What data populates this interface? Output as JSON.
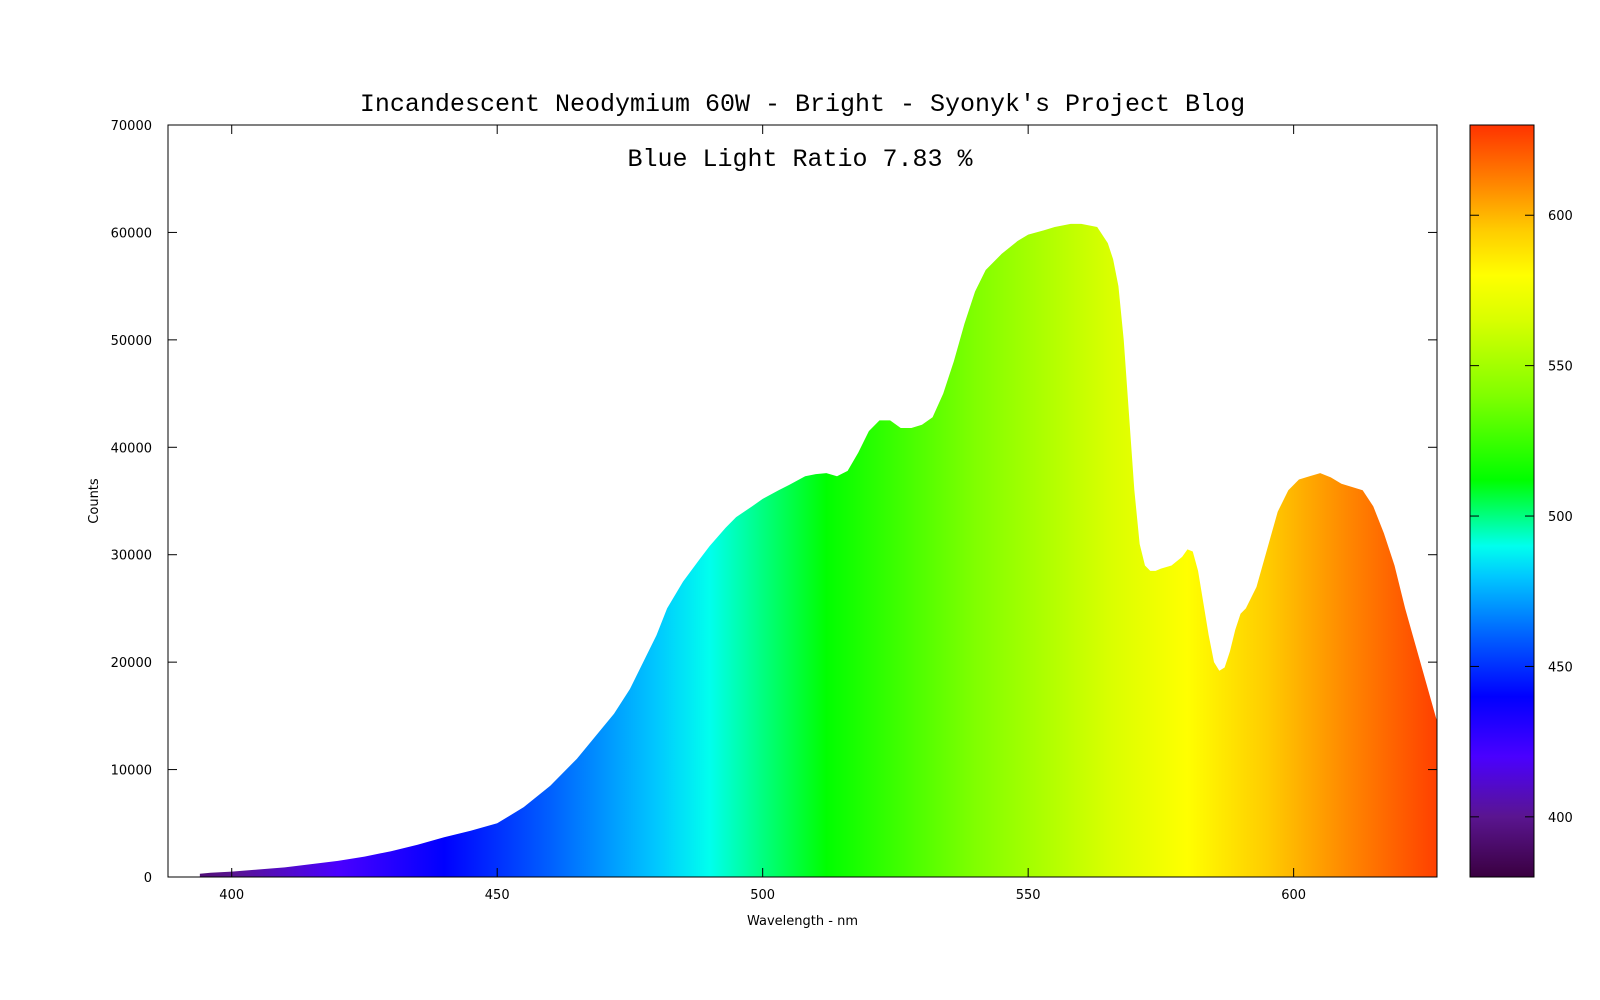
{
  "chart_data": {
    "type": "area",
    "title": "Incandescent Neodymium 60W - Bright - Syonyk's Project Blog",
    "annotation": "Blue Light Ratio 7.83 %",
    "xlabel": "Wavelength - nm",
    "ylabel": "Counts",
    "xlim": [
      388,
      627
    ],
    "ylim": [
      0,
      70000
    ],
    "x_ticks": [
      400,
      450,
      500,
      550,
      600
    ],
    "y_ticks": [
      0,
      10000,
      20000,
      30000,
      40000,
      50000,
      60000,
      70000
    ],
    "grid": false,
    "fill": "spectral gradient by wavelength",
    "colorbar": {
      "range": [
        380,
        630
      ],
      "ticks": [
        400,
        450,
        500,
        550,
        600
      ]
    },
    "x": [
      394,
      396,
      400,
      405,
      410,
      415,
      420,
      425,
      430,
      435,
      440,
      445,
      450,
      455,
      460,
      465,
      470,
      472,
      475,
      478,
      480,
      482,
      485,
      488,
      490,
      493,
      495,
      498,
      500,
      503,
      505,
      508,
      510,
      512,
      514,
      516,
      518,
      520,
      522,
      524,
      526,
      528,
      530,
      532,
      534,
      536,
      538,
      540,
      542,
      545,
      548,
      550,
      553,
      555,
      558,
      560,
      563,
      565,
      566,
      567,
      568,
      569,
      570,
      571,
      572,
      573,
      574,
      575,
      577,
      579,
      580,
      581,
      582,
      583,
      584,
      585,
      586,
      587,
      588,
      589,
      590,
      591,
      593,
      595,
      597,
      599,
      601,
      603,
      605,
      607,
      609,
      611,
      613,
      615,
      617,
      619,
      621,
      623,
      625,
      627
    ],
    "values": [
      300,
      400,
      500,
      700,
      900,
      1200,
      1500,
      1900,
      2400,
      3000,
      3700,
      4300,
      5000,
      6500,
      8500,
      11000,
      14000,
      15200,
      17500,
      20500,
      22500,
      25000,
      27500,
      29500,
      30800,
      32500,
      33500,
      34500,
      35200,
      36000,
      36500,
      37300,
      37500,
      37600,
      37300,
      37800,
      39500,
      41500,
      42500,
      42500,
      41800,
      41800,
      42100,
      42800,
      45000,
      48000,
      51500,
      54500,
      56500,
      58000,
      59200,
      59800,
      60200,
      60500,
      60800,
      60800,
      60500,
      59000,
      57500,
      55000,
      50000,
      43000,
      36000,
      31000,
      29000,
      28500,
      28500,
      28700,
      29000,
      29800,
      30500,
      30300,
      28500,
      25500,
      22500,
      20000,
      19200,
      19500,
      21000,
      23000,
      24500,
      25000,
      27000,
      30500,
      34000,
      36000,
      37000,
      37300,
      37600,
      37200,
      36600,
      36300,
      36000,
      34500,
      32000,
      29000,
      25000,
      21500,
      18000,
      14500
    ]
  }
}
